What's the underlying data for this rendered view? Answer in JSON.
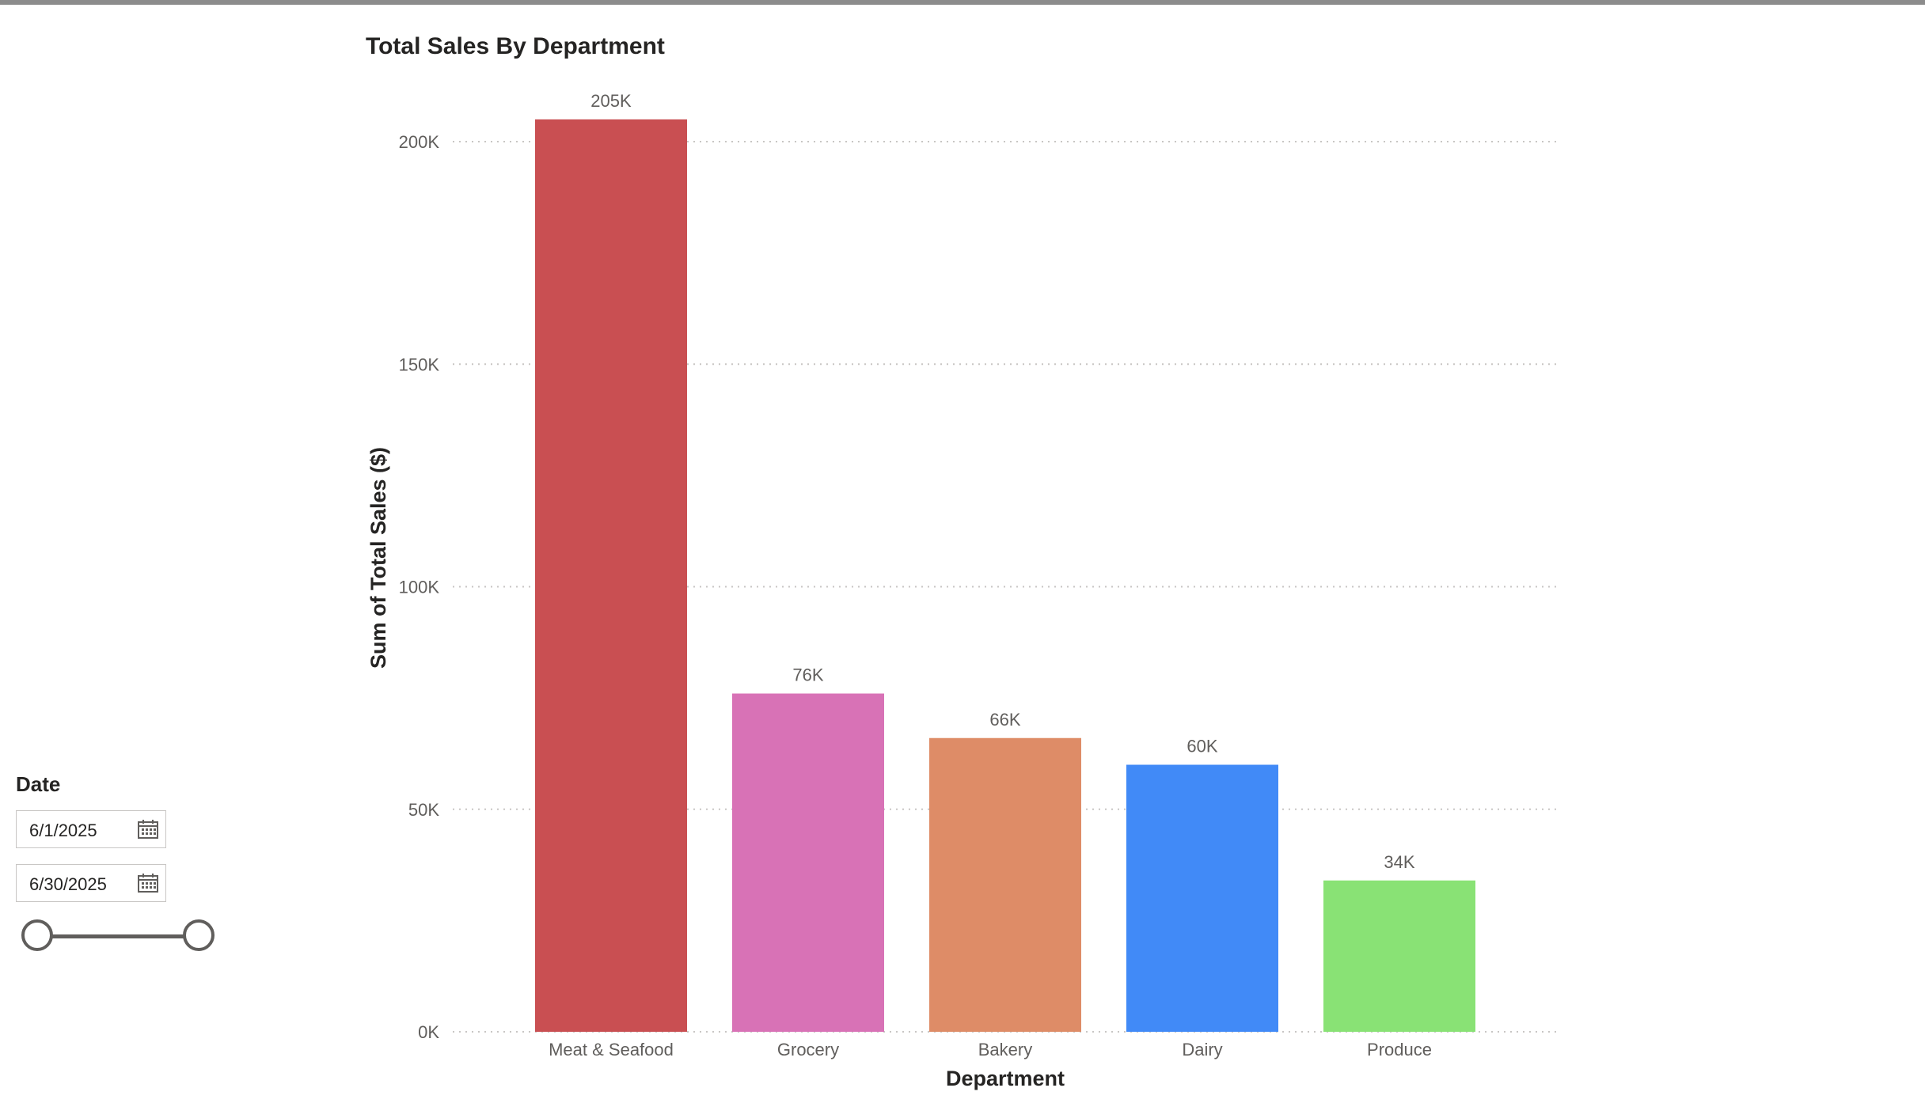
{
  "colors": {
    "meat_seafood": "#c94f52",
    "grocery": "#d872b6",
    "bakery": "#de8c67",
    "dairy": "#418af7",
    "produce": "#89e275",
    "gridline": "#c8c6c4"
  },
  "slicer": {
    "title": "Date",
    "start_date": "6/1/2025",
    "end_date": "6/30/2025",
    "range_fraction": [
      0,
      1
    ]
  },
  "chart_data": {
    "type": "bar",
    "title": "Total Sales By Department",
    "xlabel": "Department",
    "ylabel": "Sum of Total Sales ($)",
    "categories": [
      "Meat & Seafood",
      "Grocery",
      "Bakery",
      "Dairy",
      "Produce"
    ],
    "values": [
      205000,
      76000,
      66000,
      60000,
      34000
    ],
    "data_labels": [
      "205K",
      "76K",
      "66K",
      "60K",
      "34K"
    ],
    "ylim": [
      0,
      210000
    ],
    "yticks": [
      0,
      50000,
      100000,
      150000,
      200000
    ],
    "ytick_labels": [
      "0K",
      "50K",
      "100K",
      "150K",
      "200K"
    ],
    "grid": true,
    "legend": "none"
  }
}
